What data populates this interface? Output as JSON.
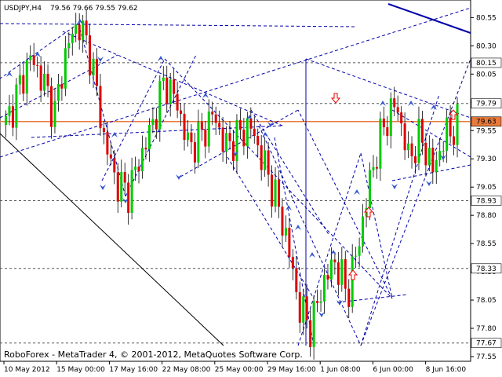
{
  "header": {
    "symbol": "USDJPY,H4",
    "ohlc": "79.56 79.66 79.55 79.62"
  },
  "footer": {
    "copyright": "RoboForex - MetaTrader 4, © 2001-2012, MetaQuotes Software Corp."
  },
  "colors": {
    "background": "#ffffff",
    "bull_candle": "#00cc00",
    "bear_candle": "#dd0000",
    "wick": "#000000",
    "trendline": "#0000aa",
    "current_price_line": "#e87a3c",
    "support_resistance": "#555555",
    "red_arrow": "#ee0000",
    "fractal_arrow": "#3355cc"
  },
  "chart_data": {
    "type": "candlestick",
    "symbol": "USDJPY",
    "timeframe": "H4",
    "ylim": [
      77.55,
      80.65
    ],
    "y_ticks": [
      80.55,
      80.3,
      80.05,
      79.8,
      79.55,
      79.3,
      79.05,
      78.8,
      78.55,
      78.3,
      78.05,
      77.8,
      77.55
    ],
    "x_tick_labels": [
      "10 May 2012",
      "15 May 00:00",
      "17 May 16:00",
      "22 May 08:00",
      "25 May 00:00",
      "29 May 16:00",
      "1 Jun 08:00",
      "6 Jun 00:00",
      "8 Jun 16:00"
    ],
    "highlighted_levels": [
      {
        "value": 80.15,
        "label": "80.15"
      },
      {
        "value": 79.79,
        "label": "79.79"
      },
      {
        "value": 79.63,
        "label": "79.63",
        "current": true
      },
      {
        "value": 78.93,
        "label": "78.93"
      },
      {
        "value": 78.33,
        "label": "78.33"
      },
      {
        "value": 77.67,
        "label": "77.67"
      }
    ],
    "close_path": [
      79.6,
      79.9,
      80.2,
      80.0,
      79.7,
      80.3,
      80.5,
      80.2,
      79.5,
      79.1,
      79.0,
      79.3,
      79.6,
      80.0,
      79.8,
      79.4,
      79.5,
      79.7,
      79.4,
      79.5,
      79.6,
      79.3,
      79.0,
      78.6,
      78.0,
      77.8,
      78.2,
      78.4,
      78.1,
      78.6,
      79.2,
      79.6,
      79.8,
      79.3,
      79.5,
      79.2,
      79.5,
      79.6
    ]
  }
}
